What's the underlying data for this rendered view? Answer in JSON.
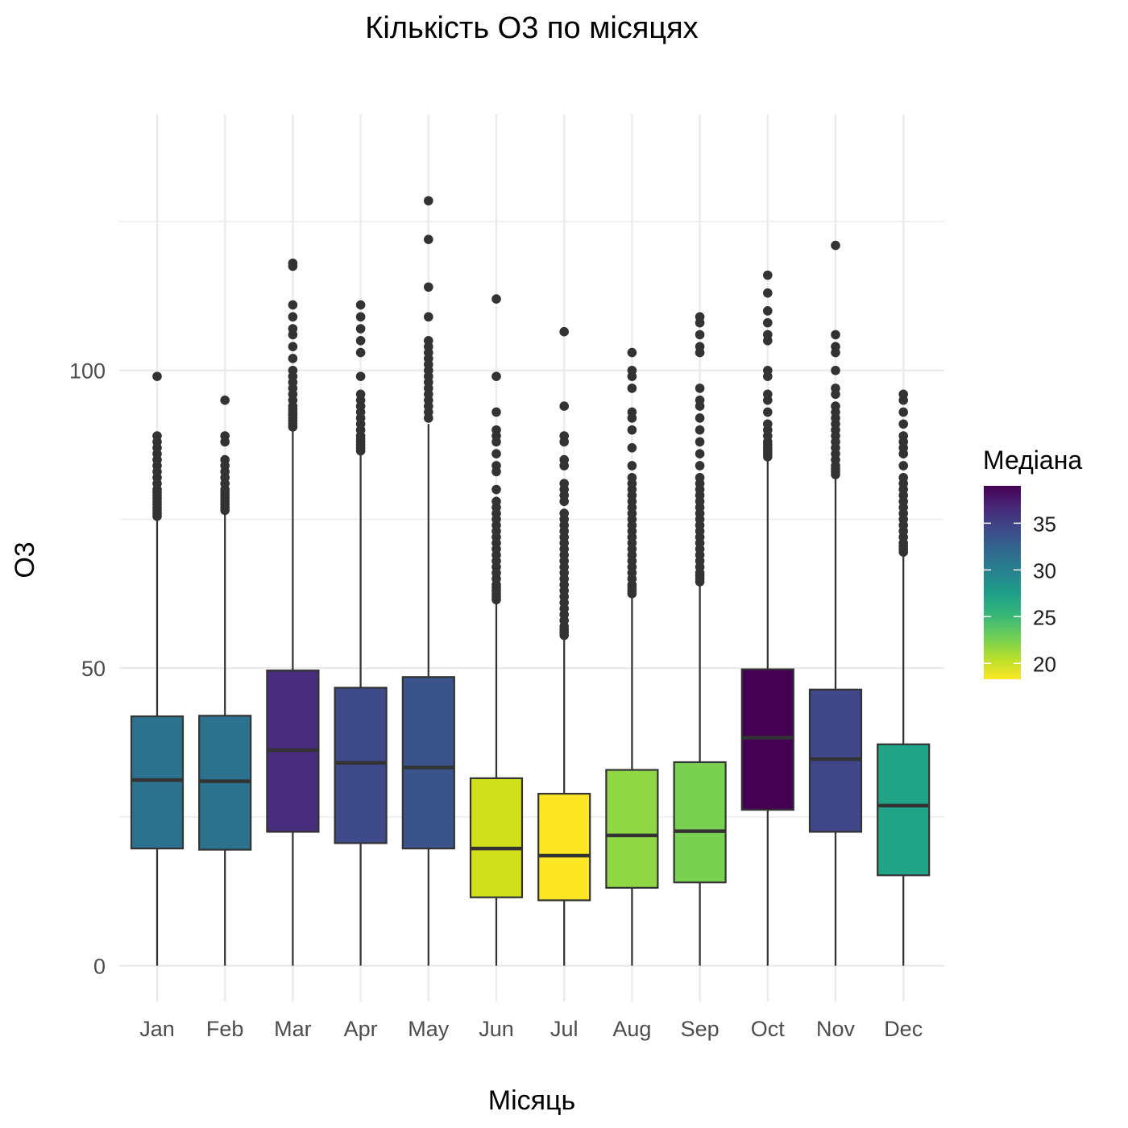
{
  "chart_data": {
    "type": "boxplot",
    "title": "Кількість O3 по місяцях",
    "xlabel": "Місяць",
    "ylabel": "O3",
    "ylim": [
      -6,
      143
    ],
    "yticks": [
      0,
      50,
      100
    ],
    "grid": true,
    "legend_position": "right",
    "categories": [
      "Jan",
      "Feb",
      "Mar",
      "Apr",
      "May",
      "Jun",
      "Jul",
      "Aug",
      "Sep",
      "Oct",
      "Nov",
      "Dec"
    ],
    "boxes": [
      {
        "month": "Jan",
        "min": 0,
        "q1": 19.7,
        "median": 31.2,
        "q3": 41.9,
        "whisker_high": 75,
        "outliers": [
          75.5,
          76,
          76.5,
          77,
          77.5,
          78,
          78.5,
          79,
          79.5,
          80,
          81,
          82,
          83,
          84,
          85,
          86,
          87,
          88,
          89,
          99
        ]
      },
      {
        "month": "Feb",
        "min": 0,
        "q1": 19.5,
        "median": 31.0,
        "q3": 42.0,
        "whisker_high": 76,
        "outliers": [
          76.5,
          77,
          77.5,
          78,
          78.5,
          79,
          79.5,
          80,
          81,
          82,
          83,
          84,
          85,
          88,
          89,
          95
        ]
      },
      {
        "month": "Mar",
        "min": 0,
        "q1": 22.5,
        "median": 36.2,
        "q3": 49.6,
        "whisker_high": 90,
        "outliers": [
          90.5,
          91,
          91.5,
          92,
          92.5,
          93,
          93.5,
          94,
          95,
          96,
          97,
          98,
          99,
          100,
          102,
          104,
          106,
          107,
          109,
          111,
          117.5,
          118
        ]
      },
      {
        "month": "Apr",
        "min": 0,
        "q1": 20.6,
        "median": 34.1,
        "q3": 46.7,
        "whisker_high": 86,
        "outliers": [
          86.5,
          87,
          87.5,
          88,
          88.5,
          89,
          90,
          91,
          92,
          93,
          94,
          95,
          96,
          99,
          103,
          105,
          107,
          109,
          111
        ]
      },
      {
        "month": "May",
        "min": 0,
        "q1": 19.7,
        "median": 33.3,
        "q3": 48.5,
        "whisker_high": 91,
        "outliers": [
          92,
          93,
          94,
          95,
          96,
          97,
          98,
          99,
          100,
          101,
          102,
          103,
          104,
          105,
          109,
          114,
          122,
          128.5
        ]
      },
      {
        "month": "Jun",
        "min": 0,
        "q1": 11.5,
        "median": 19.7,
        "q3": 31.5,
        "whisker_high": 61,
        "outliers": [
          61.5,
          62,
          62.5,
          63,
          63.5,
          64,
          65,
          66,
          67,
          68,
          69,
          70,
          71,
          72,
          73,
          74,
          75,
          76,
          77,
          78,
          80,
          83,
          84,
          86,
          88,
          89,
          90,
          93,
          99,
          112
        ]
      },
      {
        "month": "Jul",
        "min": 0,
        "q1": 11.0,
        "median": 18.5,
        "q3": 28.9,
        "whisker_high": 55,
        "outliers": [
          55.5,
          56,
          56.5,
          57,
          58,
          59,
          60,
          61,
          62,
          63,
          64,
          65,
          66,
          67,
          68,
          69,
          70,
          71,
          72,
          73,
          74,
          75,
          76,
          78,
          79,
          80,
          81,
          84,
          85,
          88,
          89,
          94,
          106.5
        ]
      },
      {
        "month": "Aug",
        "min": 0,
        "q1": 13.1,
        "median": 21.9,
        "q3": 32.9,
        "whisker_high": 62,
        "outliers": [
          62.5,
          63,
          63.5,
          64,
          65,
          66,
          67,
          68,
          69,
          70,
          71,
          72,
          73,
          74,
          75,
          76,
          77,
          78,
          79,
          80,
          81,
          82,
          84,
          87,
          90,
          92,
          93,
          97,
          99,
          100,
          103
        ]
      },
      {
        "month": "Sep",
        "min": 0,
        "q1": 14.0,
        "median": 22.6,
        "q3": 34.2,
        "whisker_high": 64,
        "outliers": [
          64.5,
          65,
          65.5,
          66,
          67,
          68,
          69,
          70,
          71,
          72,
          73,
          74,
          75,
          76,
          77,
          78,
          79,
          80,
          81,
          82,
          84,
          86,
          88,
          90,
          92,
          94,
          95,
          97,
          103,
          104,
          106,
          108,
          109
        ]
      },
      {
        "month": "Oct",
        "min": 0,
        "q1": 26.2,
        "median": 38.3,
        "q3": 49.8,
        "whisker_high": 85,
        "outliers": [
          85.5,
          86,
          86.5,
          87,
          87.5,
          88,
          89,
          90,
          91,
          93,
          95,
          96,
          99,
          100,
          105,
          106,
          108,
          110,
          113,
          116
        ]
      },
      {
        "month": "Nov",
        "min": 0,
        "q1": 22.5,
        "median": 34.7,
        "q3": 46.4,
        "whisker_high": 82,
        "outliers": [
          82.5,
          83,
          83.5,
          84,
          85,
          86,
          87,
          88,
          89,
          90,
          91,
          92,
          93,
          94,
          96,
          97,
          100,
          103,
          104,
          106,
          121
        ]
      },
      {
        "month": "Dec",
        "min": 0,
        "q1": 15.2,
        "median": 26.9,
        "q3": 37.2,
        "whisker_high": 69,
        "outliers": [
          69.5,
          70,
          70.5,
          71,
          72,
          73,
          74,
          75,
          76,
          77,
          78,
          79,
          80,
          81,
          82,
          84,
          86,
          87,
          88,
          89,
          91,
          93,
          95,
          96
        ]
      }
    ],
    "fill_colors": [
      "#2c728e",
      "#2c728e",
      "#472d7b",
      "#3e4a89",
      "#3a538b",
      "#d0e11c",
      "#fde725",
      "#8fd744",
      "#7ad151",
      "#440154",
      "#3f4788",
      "#20a386"
    ],
    "legend": {
      "title": "Медіана",
      "range": [
        18.3,
        39.0
      ],
      "ticks": [
        20,
        25,
        30,
        35
      ],
      "colors": [
        "#fde725",
        "#b5de2b",
        "#6ece58",
        "#35b779",
        "#1f9e89",
        "#26828e",
        "#31688e",
        "#3e4989",
        "#482878",
        "#440154"
      ]
    }
  }
}
